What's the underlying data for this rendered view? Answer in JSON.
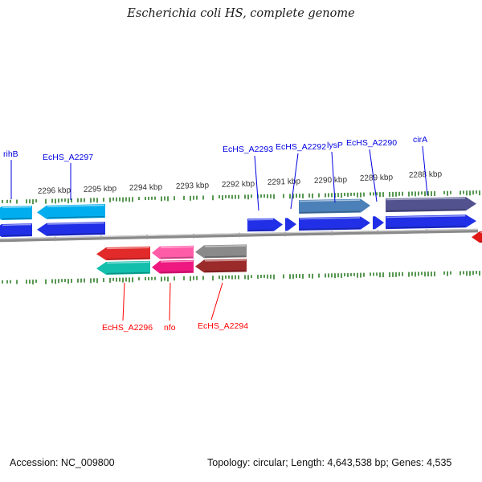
{
  "title": "Escherichia coli HS, complete genome",
  "footer": {
    "accession": "Accession: NC_009800",
    "stats": "Topology: circular; Length: 4,643,538 bp; Genes: 4,535"
  },
  "ruler": {
    "unit_labels": [
      "2296 kbp",
      "2295 kbp",
      "2294 kbp",
      "2293 kbp",
      "2292 kbp",
      "2291 kbp",
      "2290 kbp",
      "2289 kbp",
      "2288 kbp"
    ]
  },
  "genes": {
    "rihB": {
      "label": "rihB",
      "strand": "top",
      "arrow_colors": [
        "#00AEEF",
        "#2130E6"
      ]
    },
    "EcHS_A2297": {
      "label": "EcHS_A2297",
      "strand": "top",
      "arrow_colors": [
        "#00AEEF",
        "#2130E6"
      ]
    },
    "EcHS_A2293": {
      "label": "EcHS_A2293",
      "strand": "top",
      "arrow_colors": [
        "#2130E6"
      ]
    },
    "EcHS_A2292": {
      "label": "EcHS_A2292",
      "strand": "top",
      "arrow_colors": [
        "#2130E6"
      ]
    },
    "lysP": {
      "label": "lysP",
      "strand": "top",
      "arrow_colors": [
        "#4C80B8",
        "#2130E6"
      ]
    },
    "EcHS_A2290": {
      "label": "EcHS_A2290",
      "strand": "top",
      "arrow_colors": [
        "#2130E6"
      ]
    },
    "cirA": {
      "label": "cirA",
      "strand": "top",
      "arrow_colors": [
        "#52528E",
        "#2130E6"
      ]
    },
    "EcHS_A2296": {
      "label": "EcHS_A2296",
      "strand": "bottom",
      "arrow_colors": [
        "#E22A2A",
        "#12BFAD"
      ]
    },
    "nfo": {
      "label": "nfo",
      "strand": "bottom",
      "arrow_colors": [
        "#FF5CA8",
        "#EE1880"
      ]
    },
    "EcHS_A2294": {
      "label": "EcHS_A2294",
      "strand": "bottom",
      "arrow_colors": [
        "#8A8A8A",
        "#9B2A2A"
      ]
    },
    "unlabeled_right": {
      "label": "",
      "strand": "bottom",
      "arrow_colors": [
        "#E01818"
      ]
    }
  },
  "colors": {
    "top_label": "#0000E0",
    "bottom_label": "#FF0000",
    "tick_green": "#2E7D27",
    "backbone": "#8A8A8A",
    "backbone_highlight": "#CFCFCF",
    "ruler_text": "#333333",
    "kbp_tick": "#9A9A9A"
  }
}
